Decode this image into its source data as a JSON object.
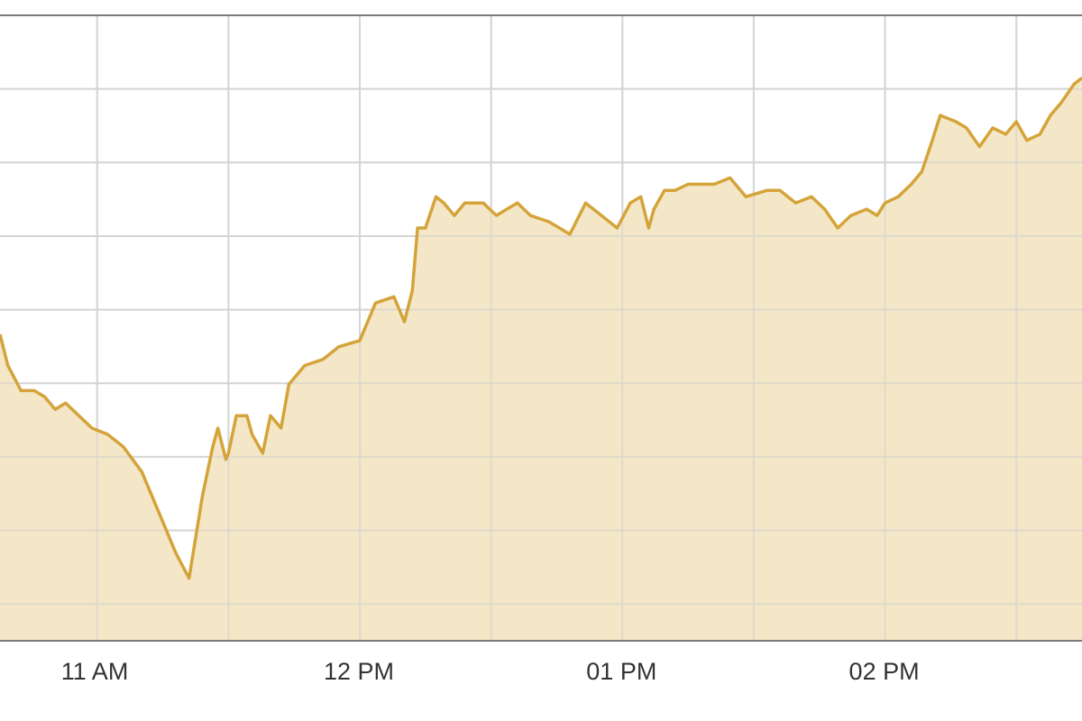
{
  "colors": {
    "line": "#d4a43a",
    "area_fill": "#f2e3bd",
    "grid": "#d6d6d6",
    "axis": "#7a7a7a",
    "tick_text": "#333333"
  },
  "chart_data": {
    "type": "area",
    "title": "",
    "xlabel": "",
    "ylabel": "",
    "x_tick_labels": [
      "11 AM",
      "12 PM",
      "01 PM",
      "02 PM"
    ],
    "x_ticks_hours": [
      11,
      12,
      13,
      14
    ],
    "x_range_hours": [
      10.63,
      14.75
    ],
    "y_range": [
      0,
      100
    ],
    "grid": true,
    "legend": "none",
    "x_hours": [
      10.63,
      10.66,
      10.71,
      10.76,
      10.8,
      10.84,
      10.88,
      10.93,
      10.98,
      11.04,
      11.1,
      11.17,
      11.24,
      11.3,
      11.35,
      11.4,
      11.44,
      11.46,
      11.49,
      11.5,
      11.53,
      11.57,
      11.59,
      11.63,
      11.66,
      11.7,
      11.73,
      11.79,
      11.86,
      11.92,
      12.0,
      12.06,
      12.13,
      12.17,
      12.2,
      12.22,
      12.25,
      12.29,
      12.32,
      12.36,
      12.4,
      12.47,
      12.52,
      12.56,
      12.6,
      12.65,
      12.72,
      12.8,
      12.86,
      12.92,
      12.98,
      13.03,
      13.07,
      13.1,
      13.12,
      13.16,
      13.2,
      13.25,
      13.3,
      13.35,
      13.41,
      13.47,
      13.55,
      13.6,
      13.66,
      13.72,
      13.77,
      13.82,
      13.87,
      13.93,
      13.97,
      14.0,
      14.05,
      14.1,
      14.14,
      14.18,
      14.21,
      14.27,
      14.31,
      14.36,
      14.41,
      14.46,
      14.5,
      14.54,
      14.59,
      14.63,
      14.67,
      14.72,
      14.75
    ],
    "values": [
      49,
      44,
      40,
      40,
      39,
      37,
      38,
      36,
      34,
      33,
      31,
      27,
      20,
      14,
      10,
      23,
      31,
      34,
      29,
      30,
      36,
      36,
      33,
      30,
      36,
      34,
      41,
      44,
      45,
      47,
      48,
      54,
      55,
      51,
      56,
      66,
      66,
      71,
      70,
      68,
      70,
      70,
      68,
      69,
      70,
      68,
      67,
      65,
      70,
      68,
      66,
      70,
      71,
      66,
      69,
      72,
      72,
      73,
      73,
      73,
      74,
      71,
      72,
      72,
      70,
      71,
      69,
      66,
      68,
      69,
      68,
      70,
      71,
      73,
      75,
      80,
      84,
      83,
      82,
      79,
      82,
      81,
      83,
      80,
      81,
      84,
      86,
      89,
      90
    ]
  }
}
